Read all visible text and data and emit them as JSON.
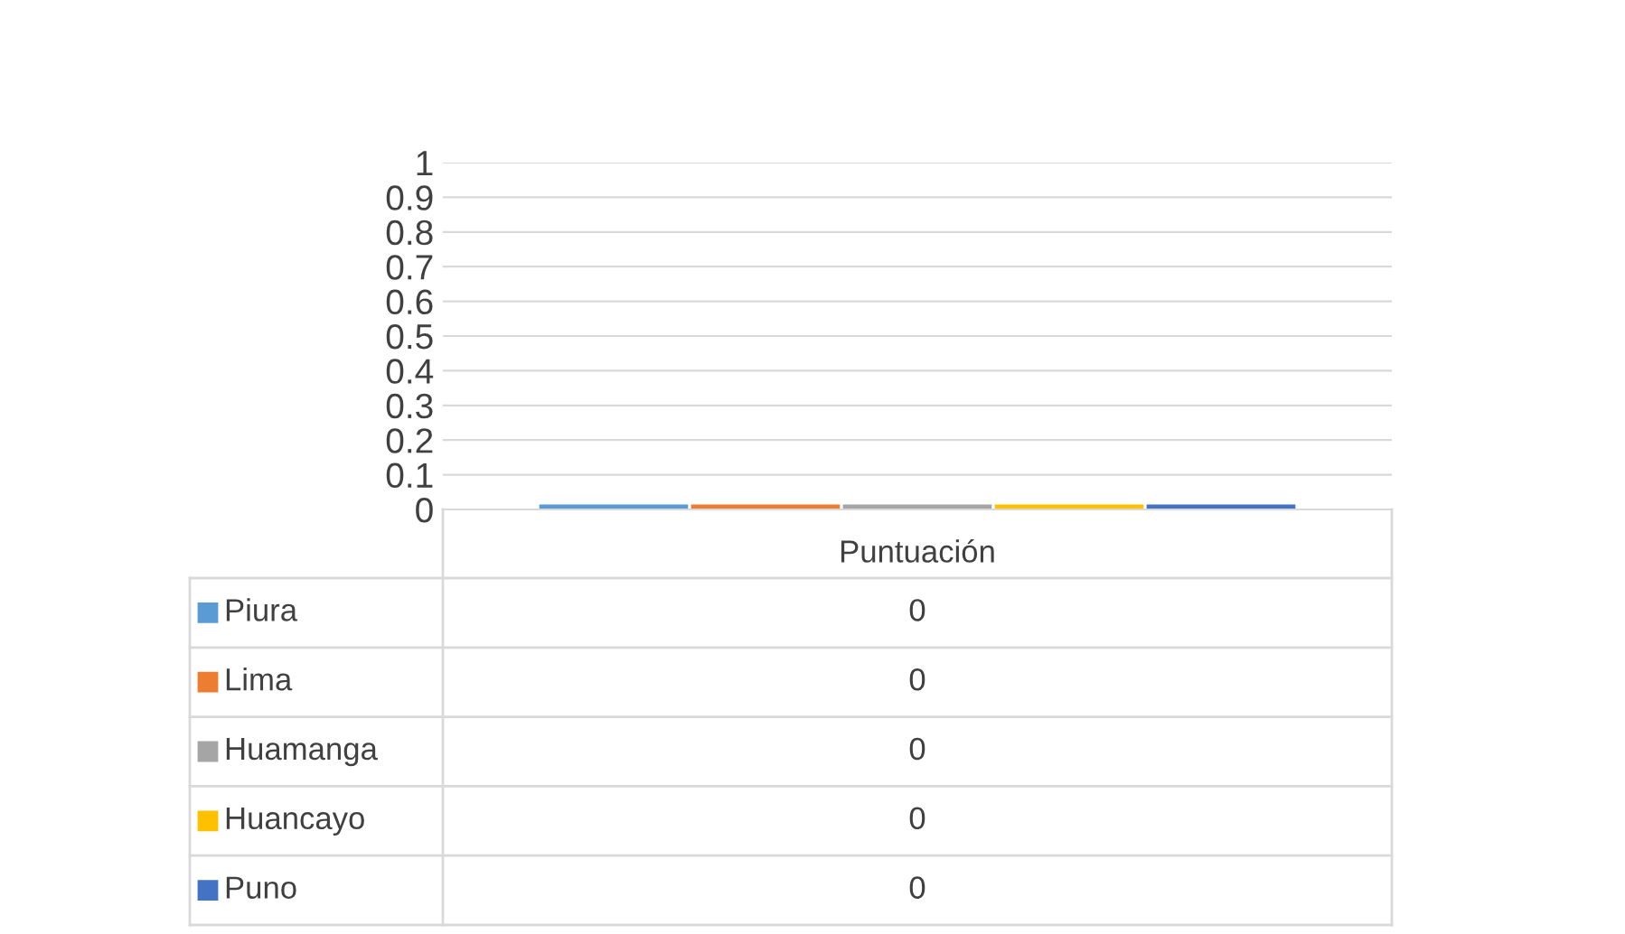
{
  "chart_data": {
    "type": "bar",
    "categories": [
      "Puntuación"
    ],
    "series": [
      {
        "name": "Piura",
        "color": "#5b9bd5",
        "values": [
          0
        ]
      },
      {
        "name": "Lima",
        "color": "#ed7d31",
        "values": [
          0
        ]
      },
      {
        "name": "Huamanga",
        "color": "#a5a5a5",
        "values": [
          0
        ]
      },
      {
        "name": "Huancayo",
        "color": "#ffc000",
        "values": [
          0
        ]
      },
      {
        "name": "Puno",
        "color": "#4472c4",
        "values": [
          0
        ]
      }
    ],
    "ylim": [
      0,
      1
    ],
    "yticks": [
      0,
      0.1,
      0.2,
      0.3,
      0.4,
      0.5,
      0.6,
      0.7,
      0.8,
      0.9,
      1
    ],
    "grid": "y",
    "legend": "bottom",
    "annotations": [
      "0",
      "0",
      "0",
      "0",
      "0"
    ]
  }
}
